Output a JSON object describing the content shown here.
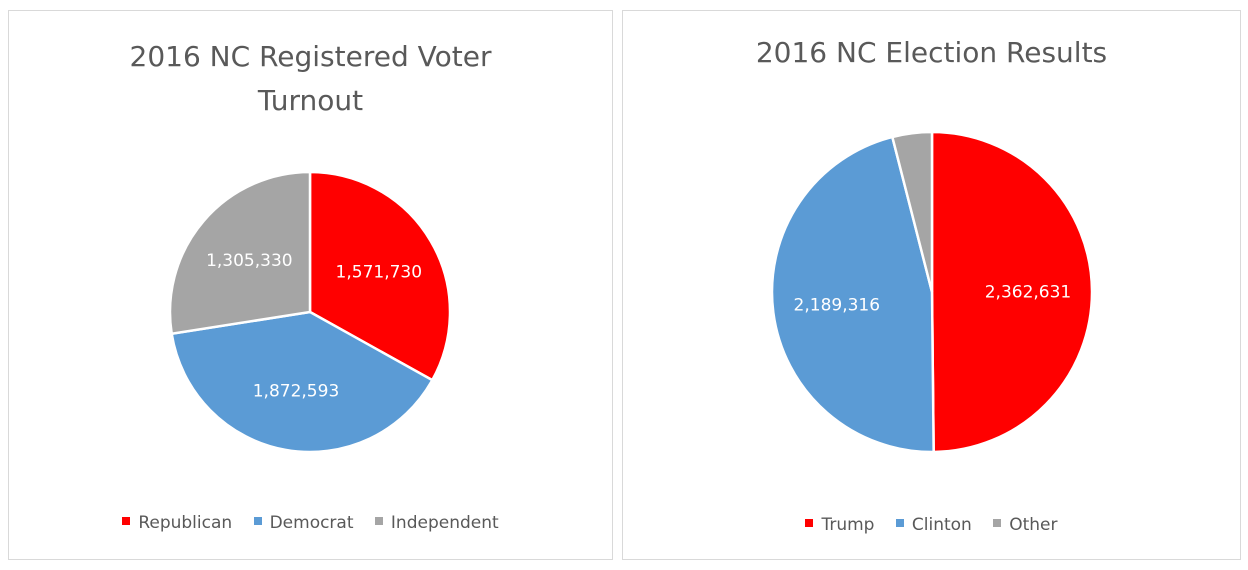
{
  "chart_data": [
    {
      "type": "pie",
      "title": "2016 NC Registered Voter Turnout",
      "categories": [
        "Republican",
        "Democrat",
        "Independent"
      ],
      "values": [
        1571730,
        1872593,
        1305330
      ],
      "data_labels": [
        "1,571,730",
        "1,872,593",
        "1,305,330"
      ],
      "colors": [
        "#ff0000",
        "#5b9bd5",
        "#a5a5a5"
      ],
      "legend": "bottom"
    },
    {
      "type": "pie",
      "title": "2016 NC Election Results",
      "categories": [
        "Trump",
        "Clinton",
        "Other"
      ],
      "values": [
        2362631,
        2189316,
        189000
      ],
      "data_labels": [
        "2,362,631",
        "2,189,316",
        ""
      ],
      "colors": [
        "#ff0000",
        "#5b9bd5",
        "#a5a5a5"
      ],
      "legend": "bottom"
    }
  ]
}
